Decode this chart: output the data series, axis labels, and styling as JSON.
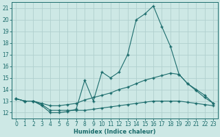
{
  "xlabel": "Humidex (Indice chaleur)",
  "background_color": "#cde8e5",
  "grid_color": "#b0d0ce",
  "line_color": "#1a6b6b",
  "xlim": [
    -0.5,
    23.5
  ],
  "ylim": [
    11.5,
    21.5
  ],
  "yticks": [
    12,
    13,
    14,
    15,
    16,
    17,
    18,
    19,
    20,
    21
  ],
  "xticks": [
    0,
    1,
    2,
    3,
    4,
    5,
    6,
    7,
    8,
    9,
    10,
    11,
    12,
    13,
    14,
    15,
    16,
    17,
    18,
    19,
    20,
    21,
    22,
    23
  ],
  "series": [
    {
      "x": [
        0,
        1,
        2,
        3,
        4,
        5,
        6,
        7,
        8,
        9,
        10,
        11,
        12,
        13,
        14,
        15,
        16,
        17,
        18,
        19,
        20,
        21,
        22,
        23
      ],
      "y": [
        13.2,
        13.0,
        13.0,
        12.6,
        12.0,
        12.0,
        12.1,
        12.3,
        14.8,
        13.0,
        15.5,
        15.0,
        15.5,
        17.0,
        20.0,
        20.5,
        21.2,
        19.4,
        17.7,
        15.3,
        14.5,
        13.9,
        13.3,
        12.8
      ]
    },
    {
      "x": [
        0,
        1,
        2,
        3,
        4,
        5,
        6,
        7,
        8,
        9,
        10,
        11,
        12,
        13,
        14,
        15,
        16,
        17,
        18,
        19,
        20,
        21,
        22,
        23
      ],
      "y": [
        13.2,
        13.0,
        13.0,
        12.8,
        12.6,
        12.6,
        12.7,
        12.8,
        13.1,
        13.3,
        13.5,
        13.7,
        14.0,
        14.2,
        14.5,
        14.8,
        15.0,
        15.2,
        15.4,
        15.3,
        14.5,
        14.0,
        13.5,
        12.8
      ]
    },
    {
      "x": [
        0,
        1,
        2,
        3,
        4,
        5,
        6,
        7,
        8,
        9,
        10,
        11,
        12,
        13,
        14,
        15,
        16,
        17,
        18,
        19,
        20,
        21,
        22,
        23
      ],
      "y": [
        13.2,
        13.0,
        13.0,
        12.7,
        12.2,
        12.2,
        12.2,
        12.2,
        12.2,
        12.3,
        12.4,
        12.5,
        12.6,
        12.7,
        12.8,
        12.9,
        13.0,
        13.0,
        13.0,
        13.0,
        12.9,
        12.8,
        12.7,
        12.6
      ]
    }
  ]
}
